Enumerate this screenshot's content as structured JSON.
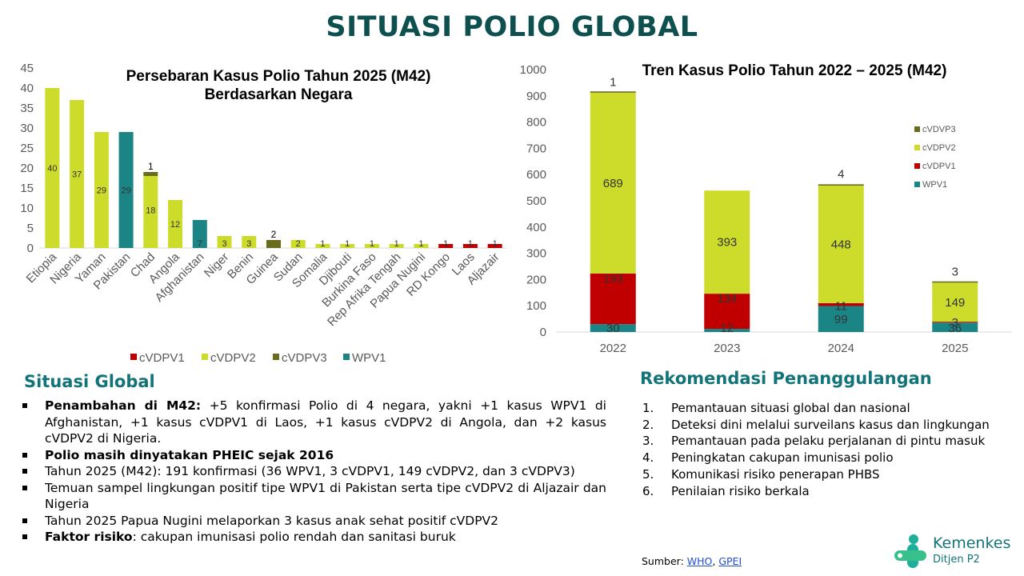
{
  "page_title": "SITUASI POLIO GLOBAL",
  "colors": {
    "cVDPV1": "#c00000",
    "cVDPV2": "#cddc2a",
    "cVDPV3": "#6b6b1e",
    "cVDVP3": "#6b6b1e",
    "WPV1": "#1b8585",
    "heading": "#127478",
    "title": "#0e4f4f"
  },
  "chart_data": [
    {
      "type": "bar",
      "stacked": true,
      "title": "Persebaran Kasus Polio Tahun 2025 (M42) Berdasarkan Negara",
      "title_lines": [
        "Persebaran Kasus Polio Tahun 2025 (M42)",
        "Berdasarkan Negara"
      ],
      "categories": [
        "Etiopia",
        "Nigeria",
        "Yaman",
        "Pakistan",
        "Chad",
        "Angola",
        "Afghanistan",
        "Niger",
        "Benin",
        "Guinea",
        "Sudan",
        "Somalia",
        "Djibouti",
        "Burkina Faso",
        "Rep Afrika Tengah",
        "Papua Nugini",
        "RD Kongo",
        "Laos",
        "Aljazair"
      ],
      "series": [
        {
          "name": "cVDPV1",
          "values": [
            0,
            0,
            0,
            0,
            0,
            0,
            0,
            0,
            0,
            0,
            0,
            0,
            0,
            0,
            0,
            0,
            1,
            1,
            1
          ]
        },
        {
          "name": "cVDPV2",
          "values": [
            40,
            37,
            29,
            0,
            18,
            12,
            0,
            3,
            3,
            0,
            2,
            1,
            1,
            1,
            1,
            1,
            0,
            0,
            0
          ]
        },
        {
          "name": "cVDPV3",
          "values": [
            0,
            0,
            0,
            0,
            1,
            0,
            0,
            0,
            0,
            2,
            0,
            0,
            0,
            0,
            0,
            0,
            0,
            0,
            0
          ]
        },
        {
          "name": "WPV1",
          "values": [
            0,
            0,
            0,
            29,
            0,
            0,
            7,
            0,
            0,
            0,
            0,
            0,
            0,
            0,
            0,
            0,
            0,
            0,
            0
          ]
        }
      ],
      "value_labels": [
        "40",
        "37",
        "29",
        "29",
        "18",
        "12",
        "7",
        "3",
        "3",
        "",
        "2",
        "1",
        "1",
        "1",
        "1",
        "1",
        "1",
        "1",
        "1"
      ],
      "top_labels": [
        "",
        "",
        "",
        "",
        "1",
        "",
        "",
        "",
        "",
        "2",
        "",
        "",
        "",
        "",
        "",
        "",
        "",
        "",
        ""
      ],
      "ylim": [
        0,
        45
      ],
      "yticks": [
        "0",
        "5",
        "10",
        "15",
        "20",
        "25",
        "30",
        "35",
        "40",
        "45"
      ],
      "legend_order": [
        "cVDPV1",
        "cVDPV2",
        "cVDPV3",
        "WPV1"
      ],
      "legend": "bottom",
      "grid": false
    },
    {
      "type": "bar",
      "stacked": true,
      "title": "Tren Kasus Polio Tahun 2022 – 2025 (M42)",
      "categories": [
        "2022",
        "2023",
        "2024",
        "2025"
      ],
      "series": [
        {
          "name": "WPV1",
          "values": [
            30,
            12,
            99,
            36
          ],
          "labels": [
            "30",
            "12",
            "99",
            "36"
          ]
        },
        {
          "name": "cVDPV1",
          "values": [
            193,
            134,
            11,
            3
          ],
          "labels": [
            "193",
            "134",
            "11",
            "3"
          ]
        },
        {
          "name": "cVDPV2",
          "values": [
            689,
            393,
            448,
            149
          ],
          "labels": [
            "689",
            "393",
            "448",
            "149"
          ]
        },
        {
          "name": "cVDVP3",
          "values": [
            1,
            0,
            4,
            3
          ],
          "labels": [
            "1",
            "",
            "4",
            "3"
          ]
        }
      ],
      "ylim": [
        0,
        1000
      ],
      "yticks": [
        "0",
        "100",
        "200",
        "300",
        "400",
        "500",
        "600",
        "700",
        "800",
        "900",
        "1000"
      ],
      "legend_order": [
        "cVDVP3",
        "cVDPV2",
        "cVDPV1",
        "WPV1"
      ],
      "legend": "right",
      "grid": false
    }
  ],
  "situasi": {
    "heading": "Situasi Global",
    "items": [
      {
        "bold": "Penambahan di M42:",
        "text": " +5 konfirmasi Polio di 4 negara, yakni +1 kasus WPV1 di Afghanistan, +1 kasus cVDPV1 di Laos, +1 kasus cVDPV2 di Angola, dan +2 kasus cVDPV2 di Nigeria."
      },
      {
        "bold": "Polio masih dinyatakan PHEIC sejak 2016",
        "text": ""
      },
      {
        "bold": "",
        "text": "Tahun 2025 (M42): 191 konfirmasi (36 WPV1, 3 cVDPV1, 149 cVDPV2, dan 3 cVDPV3)"
      },
      {
        "bold": "",
        "text": "Temuan sampel lingkungan positif tipe WPV1 di Pakistan serta tipe cVDPV2 di Aljazair dan Nigeria"
      },
      {
        "bold": "",
        "text": "Tahun 2025 Papua Nugini melaporkan 3 kasus anak sehat positif cVDPV2"
      },
      {
        "bold": "Faktor risiko",
        "text": ": cakupan imunisasi polio rendah dan sanitasi buruk"
      }
    ]
  },
  "rekomendasi": {
    "heading": "Rekomendasi Penanggulangan",
    "items": [
      {
        "num": "1.",
        "text": "Pemantauan situasi global dan nasional"
      },
      {
        "num": "2.",
        "text": "Deteksi dini melalui surveilans kasus dan lingkungan"
      },
      {
        "num": "3.",
        "text": "Pemantauan pada pelaku perjalanan di pintu masuk"
      },
      {
        "num": "4.",
        "text": "Peningkatan cakupan imunisasi polio"
      },
      {
        "num": "5.",
        "text": "Komunikasi risiko penerapan PHBS"
      },
      {
        "num": "6.",
        "text": "Penilaian risiko berkala"
      }
    ]
  },
  "source": {
    "label": "Sumber: ",
    "links": [
      "WHO",
      "GPEI"
    ],
    "sep": ", "
  },
  "logo": {
    "name": "Kemenkes",
    "sub": "Ditjen P2"
  }
}
